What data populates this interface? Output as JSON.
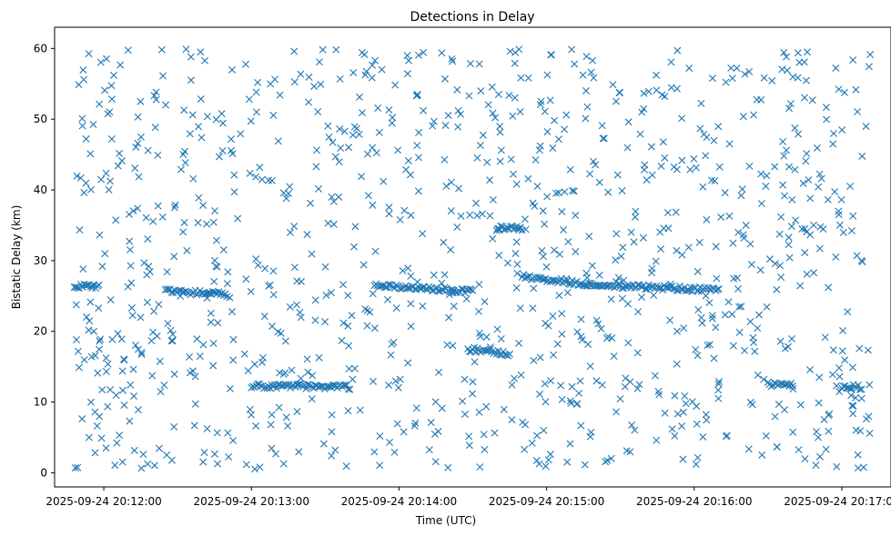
{
  "chart_data": {
    "type": "scatter",
    "title": "Detections in Delay",
    "xlabel": "Time (UTC)",
    "ylabel": "Bistatic Delay (km)",
    "grid": false,
    "legend": "none",
    "marker": "x",
    "color": "#1f77b4",
    "x_start_label": "2025-09-24 20:11:48",
    "x_end_label": "2025-09-24 20:17:12",
    "xlim": [
      "2025-09-24 20:11:40",
      "2025-09-24 20:17:20"
    ],
    "ylim": [
      -2,
      63
    ],
    "x_ticks": [
      "2025-09-24 20:12:00",
      "2025-09-24 20:13:00",
      "2025-09-24 20:14:00",
      "2025-09-24 20:15:00",
      "2025-09-24 20:16:00",
      "2025-09-24 20:17:00"
    ],
    "y_ticks": [
      "0",
      "10",
      "20",
      "30",
      "40",
      "50",
      "60"
    ],
    "y_range_observed": [
      0.5,
      59.9
    ],
    "track_segments": [
      {
        "x": [
          "2025-09-24 20:11:48",
          "2025-09-24 20:11:58"
        ],
        "y": [
          26.4,
          26.3
        ]
      },
      {
        "x": [
          "2025-09-24 20:12:25",
          "2025-09-24 20:12:50"
        ],
        "y": [
          25.7,
          25.2
        ]
      },
      {
        "x": [
          "2025-09-24 20:13:00",
          "2025-09-24 20:13:40"
        ],
        "y": [
          12.3,
          12.1
        ]
      },
      {
        "x": [
          "2025-09-24 20:13:50",
          "2025-09-24 20:14:30"
        ],
        "y": [
          26.5,
          25.6
        ]
      },
      {
        "x": [
          "2025-09-24 20:14:28",
          "2025-09-24 20:14:45"
        ],
        "y": [
          17.5,
          16.8
        ]
      },
      {
        "x": [
          "2025-09-24 20:14:40",
          "2025-09-24 20:14:50"
        ],
        "y": [
          34.6,
          34.6
        ]
      },
      {
        "x": [
          "2025-09-24 20:14:50",
          "2025-09-24 20:15:18"
        ],
        "y": [
          27.8,
          26.6
        ]
      },
      {
        "x": [
          "2025-09-24 20:15:18",
          "2025-09-24 20:16:10"
        ],
        "y": [
          26.6,
          25.8
        ]
      },
      {
        "x": [
          "2025-09-24 20:16:30",
          "2025-09-24 20:16:40"
        ],
        "y": [
          12.5,
          12.4
        ]
      },
      {
        "x": [
          "2025-09-24 20:17:00",
          "2025-09-24 20:17:08"
        ],
        "y": [
          12.2,
          12.1
        ]
      }
    ]
  }
}
